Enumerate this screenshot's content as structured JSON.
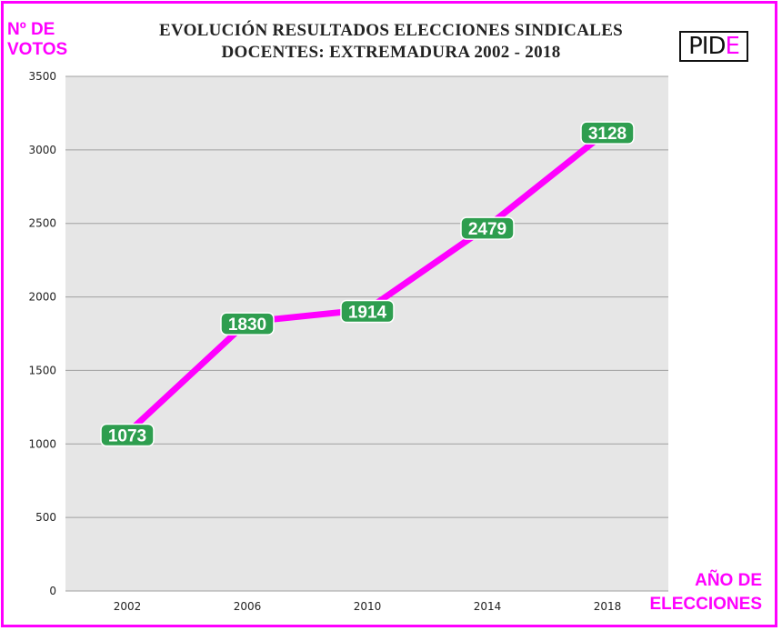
{
  "chart_data": {
    "type": "line",
    "title": "EVOLUCIÓN RESULTADOS ELECCIONES SINDICALES DOCENTES: EXTREMADURA 2002 - 2018",
    "title_lines": [
      "EVOLUCIÓN RESULTADOS ELECCIONES SINDICALES",
      "DOCENTES: EXTREMADURA 2002 - 2018"
    ],
    "ylabel": "Nº DE VOTOS",
    "ylabel_lines": [
      "Nº DE",
      "VOTOS"
    ],
    "xlabel": "AÑO DE ELECCIONES",
    "xlabel_lines": [
      "AÑO DE",
      "ELECCIONES"
    ],
    "categories": [
      "2002",
      "2006",
      "2010",
      "2014",
      "2018"
    ],
    "values": [
      1073,
      1830,
      1914,
      2479,
      3128
    ],
    "ylim": [
      0,
      3500
    ],
    "yticks": [
      0,
      500,
      1000,
      1500,
      2000,
      2500,
      3000,
      3500
    ],
    "grid": true,
    "legend": "none",
    "colors": {
      "line": "#ff00ff",
      "label_bg": "#2e9e4f",
      "label_text": "#ffffff",
      "plot_bg": "#e6e6e6",
      "grid": "#a0a0a0",
      "border": "#ff00ff"
    }
  },
  "logo": {
    "text_main": "PID",
    "text_accent": "E"
  }
}
